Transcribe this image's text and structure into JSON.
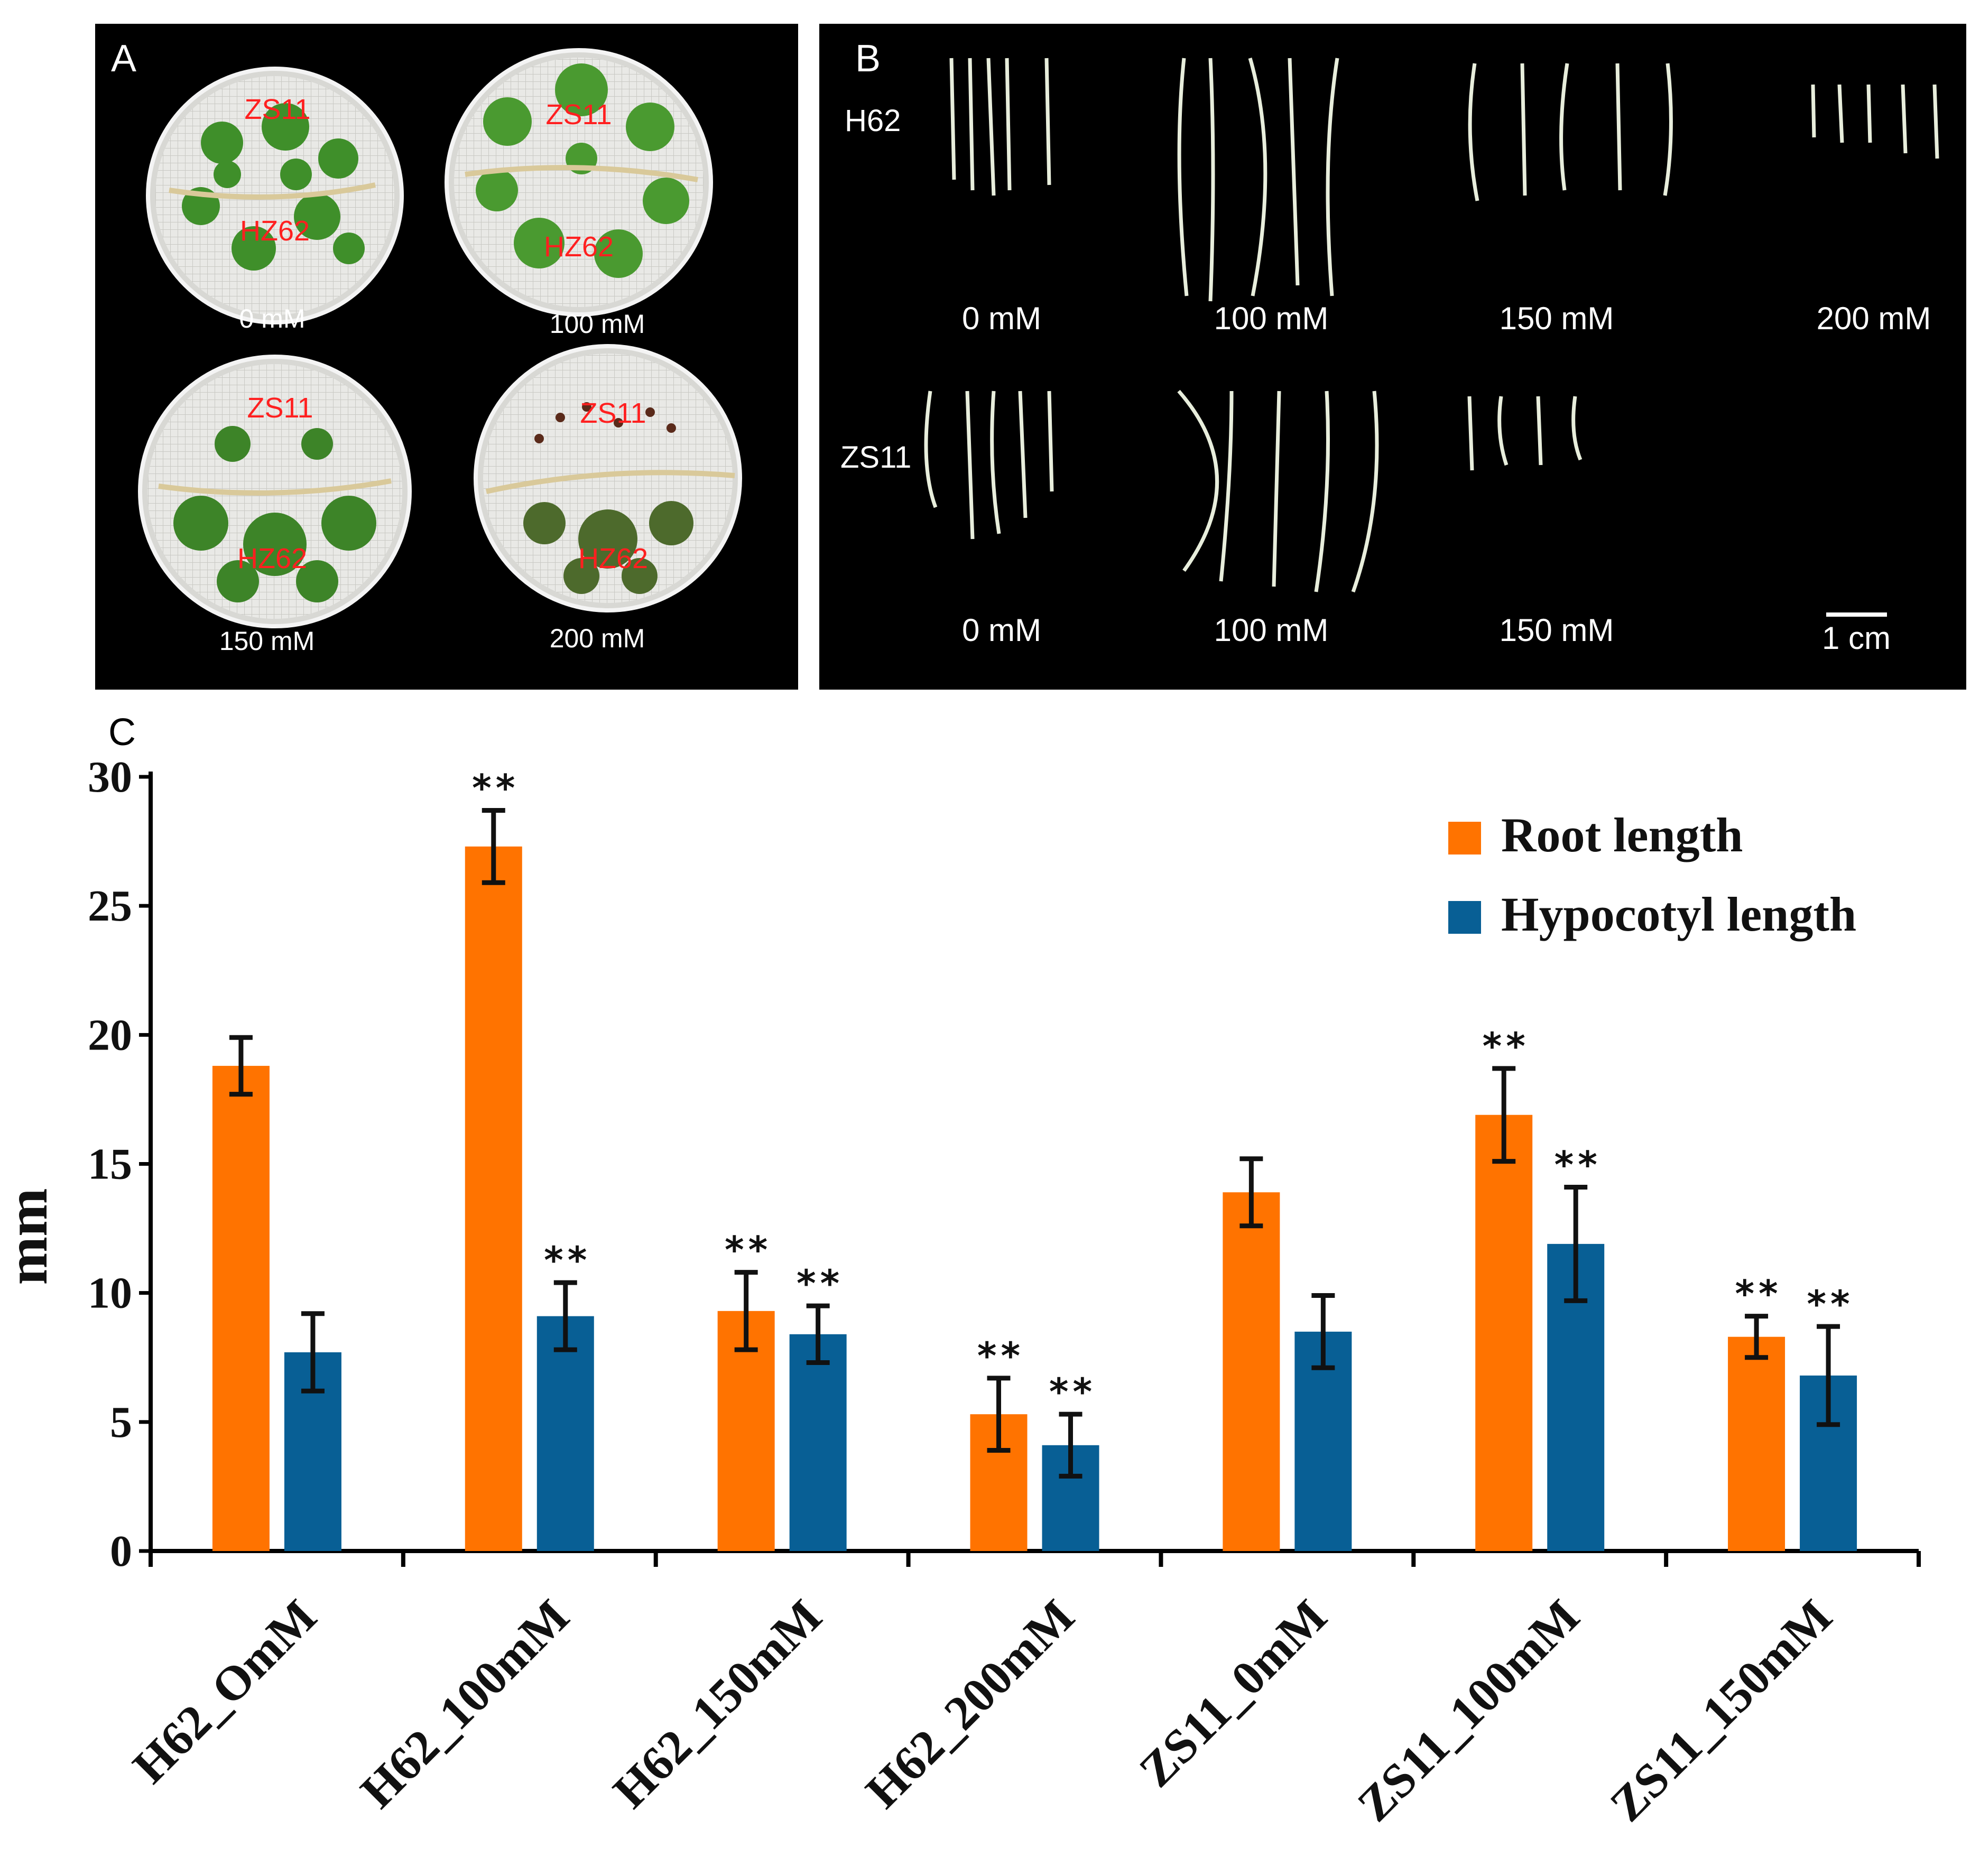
{
  "panel_a": {
    "letter": "A",
    "dishes": [
      {
        "concentration": "0 mM",
        "top_label": "ZS11",
        "bottom_label": "HZ62"
      },
      {
        "concentration": "100 mM",
        "top_label": "ZS11",
        "bottom_label": "HZ62"
      },
      {
        "concentration": "150 mM",
        "top_label": "ZS11",
        "bottom_label": "HZ62"
      },
      {
        "concentration": "200 mM",
        "top_label": "ZS11",
        "bottom_label": "HZ62"
      }
    ]
  },
  "panel_b": {
    "letter": "B",
    "rows": [
      {
        "label": "H62",
        "groups": [
          "0 mM",
          "100 mM",
          "150 mM",
          "200 mM"
        ]
      },
      {
        "label": "ZS11",
        "groups": [
          "0 mM",
          "100 mM",
          "150 mM"
        ]
      }
    ],
    "scale_bar": "1 cm"
  },
  "panel_c_letter": "C",
  "colors": {
    "root": "#ff7300",
    "hypocotyl": "#085f95",
    "photo_background": "#000000"
  },
  "chart_data": {
    "type": "bar",
    "title": "",
    "xlabel": "",
    "ylabel": "mm",
    "ylim": [
      0,
      30
    ],
    "yticks": [
      0,
      5,
      10,
      15,
      20,
      25,
      30
    ],
    "grid": false,
    "legend_position": "top-right",
    "categories": [
      "H62_OmM",
      "H62_100mM",
      "H62_150mM",
      "H62_200mM",
      "ZS11_0mM",
      "ZS11_100mM",
      "ZS11_150mM"
    ],
    "series": [
      {
        "name": "Root length",
        "color": "#ff7300",
        "values": [
          18.8,
          27.3,
          9.3,
          5.3,
          13.9,
          16.9,
          8.3
        ],
        "errors": [
          1.1,
          1.4,
          1.5,
          1.4,
          1.3,
          1.8,
          0.8
        ],
        "significance": [
          "",
          "**",
          "**",
          "**",
          "",
          "**",
          "**"
        ]
      },
      {
        "name": "Hypocotyl length",
        "color": "#085f95",
        "values": [
          7.7,
          9.1,
          8.4,
          4.1,
          8.5,
          11.9,
          6.8
        ],
        "errors": [
          1.5,
          1.3,
          1.1,
          1.2,
          1.4,
          2.2,
          1.9
        ],
        "significance": [
          "",
          "**",
          "**",
          "**",
          "",
          "**",
          "**"
        ]
      }
    ]
  }
}
